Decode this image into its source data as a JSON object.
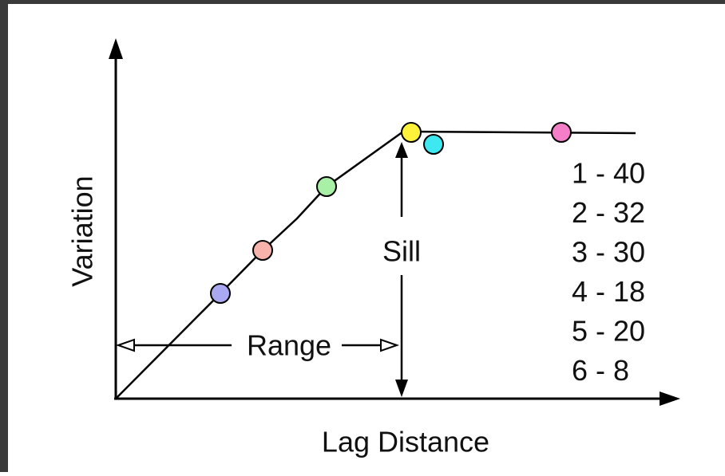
{
  "axes": {
    "y_label": "Variation",
    "x_label": "Lag Distance"
  },
  "annotations": {
    "sill": "Sill",
    "range": "Range"
  },
  "legend": [
    "1 - 40",
    "2 - 32",
    "3 - 30",
    "4 - 18",
    "5 - 20",
    "6 - 8"
  ]
}
